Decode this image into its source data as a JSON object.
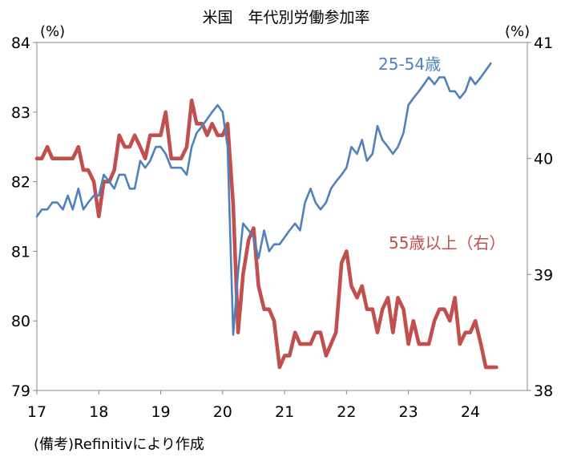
{
  "chart_data": {
    "type": "line",
    "title": "米国　年代別労働参加率",
    "y_unit_left": "(%)",
    "y_unit_right": "(%)",
    "source_note": "(備考)Refinitivにより作成",
    "x_ticks": [
      "17",
      "18",
      "19",
      "20",
      "21",
      "22",
      "23",
      "24"
    ],
    "x_tick_values": [
      2017,
      2018,
      2019,
      2020,
      2021,
      2022,
      2023,
      2024
    ],
    "xlim": [
      2017,
      2024.92
    ],
    "ylim_left": [
      79,
      84
    ],
    "ylim_right": [
      38,
      41
    ],
    "yticks_left": [
      "84",
      "83",
      "82",
      "81",
      "80",
      "79"
    ],
    "yticks_right": [
      "41",
      "40",
      "39",
      "38"
    ],
    "grid": false,
    "series": [
      {
        "name": "25-54歳",
        "axis": "left",
        "color": "#4f81bd",
        "x": [
          2017.0,
          2017.08,
          2017.17,
          2017.25,
          2017.33,
          2017.42,
          2017.5,
          2017.58,
          2017.67,
          2017.75,
          2017.83,
          2017.92,
          2018.0,
          2018.08,
          2018.17,
          2018.25,
          2018.33,
          2018.42,
          2018.5,
          2018.58,
          2018.67,
          2018.75,
          2018.83,
          2018.92,
          2019.0,
          2019.08,
          2019.17,
          2019.25,
          2019.33,
          2019.42,
          2019.5,
          2019.58,
          2019.67,
          2019.75,
          2019.83,
          2019.92,
          2020.0,
          2020.08,
          2020.17,
          2020.25,
          2020.33,
          2020.42,
          2020.5,
          2020.58,
          2020.67,
          2020.75,
          2020.83,
          2020.92,
          2021.0,
          2021.08,
          2021.17,
          2021.25,
          2021.33,
          2021.42,
          2021.5,
          2021.58,
          2021.67,
          2021.75,
          2021.83,
          2021.92,
          2022.0,
          2022.08,
          2022.17,
          2022.25,
          2022.33,
          2022.42,
          2022.5,
          2022.58,
          2022.67,
          2022.75,
          2022.83,
          2022.92,
          2023.0,
          2023.08,
          2023.17,
          2023.25,
          2023.33,
          2023.42,
          2023.5,
          2023.58,
          2023.67,
          2023.75,
          2023.83,
          2023.92,
          2024.0,
          2024.08,
          2024.17,
          2024.25,
          2024.33,
          2024.42
        ],
        "values": [
          81.5,
          81.6,
          81.6,
          81.7,
          81.7,
          81.6,
          81.8,
          81.6,
          81.9,
          81.6,
          81.7,
          81.8,
          81.8,
          82.1,
          82.0,
          81.9,
          82.1,
          82.1,
          81.9,
          81.9,
          82.3,
          82.2,
          82.3,
          82.5,
          82.5,
          82.4,
          82.2,
          82.2,
          82.2,
          82.1,
          82.5,
          82.7,
          82.8,
          82.9,
          83.0,
          83.1,
          83.0,
          82.5,
          79.8,
          80.7,
          81.4,
          81.3,
          81.2,
          80.9,
          81.3,
          81.0,
          81.1,
          81.1,
          81.2,
          81.3,
          81.4,
          81.3,
          81.7,
          81.9,
          81.7,
          81.6,
          81.7,
          81.9,
          82.0,
          82.1,
          82.2,
          82.5,
          82.4,
          82.6,
          82.3,
          82.4,
          82.8,
          82.6,
          82.5,
          82.4,
          82.5,
          82.7,
          83.1,
          83.2,
          83.3,
          83.4,
          83.5,
          83.4,
          83.5,
          83.5,
          83.3,
          83.3,
          83.2,
          83.3,
          83.5,
          83.4,
          83.5,
          83.6,
          83.7,
          null
        ]
      },
      {
        "name": "55歳以上（右）",
        "axis": "right",
        "color": "#c0504d",
        "x": [
          2017.0,
          2017.08,
          2017.17,
          2017.25,
          2017.33,
          2017.42,
          2017.5,
          2017.58,
          2017.67,
          2017.75,
          2017.83,
          2017.92,
          2018.0,
          2018.08,
          2018.17,
          2018.25,
          2018.33,
          2018.42,
          2018.5,
          2018.58,
          2018.67,
          2018.75,
          2018.83,
          2018.92,
          2019.0,
          2019.08,
          2019.17,
          2019.25,
          2019.33,
          2019.42,
          2019.5,
          2019.58,
          2019.67,
          2019.75,
          2019.83,
          2019.92,
          2020.0,
          2020.08,
          2020.17,
          2020.25,
          2020.33,
          2020.42,
          2020.5,
          2020.58,
          2020.67,
          2020.75,
          2020.83,
          2020.92,
          2021.0,
          2021.08,
          2021.17,
          2021.25,
          2021.33,
          2021.42,
          2021.5,
          2021.58,
          2021.67,
          2021.75,
          2021.83,
          2021.92,
          2022.0,
          2022.08,
          2022.17,
          2022.25,
          2022.33,
          2022.42,
          2022.5,
          2022.58,
          2022.67,
          2022.75,
          2022.83,
          2022.92,
          2023.0,
          2023.08,
          2023.17,
          2023.25,
          2023.33,
          2023.42,
          2023.5,
          2023.58,
          2023.67,
          2023.75,
          2023.83,
          2023.92,
          2024.0,
          2024.08,
          2024.17,
          2024.25,
          2024.33,
          2024.42
        ],
        "values": [
          40.0,
          40.0,
          40.1,
          40.0,
          40.0,
          40.0,
          40.0,
          40.0,
          40.1,
          39.9,
          39.9,
          39.8,
          39.5,
          39.8,
          39.8,
          39.9,
          40.2,
          40.1,
          40.1,
          40.2,
          40.1,
          40.0,
          40.2,
          40.2,
          40.2,
          40.4,
          40.0,
          40.0,
          40.0,
          40.1,
          40.5,
          40.3,
          40.3,
          40.2,
          40.3,
          40.2,
          40.2,
          40.3,
          39.6,
          38.5,
          39.0,
          39.3,
          39.4,
          38.9,
          38.7,
          38.7,
          38.6,
          38.2,
          38.3,
          38.3,
          38.5,
          38.4,
          38.4,
          38.4,
          38.5,
          38.5,
          38.3,
          38.4,
          38.5,
          39.1,
          39.2,
          38.9,
          38.8,
          38.9,
          38.7,
          38.7,
          38.5,
          38.7,
          38.8,
          38.5,
          38.8,
          38.7,
          38.4,
          38.6,
          38.4,
          38.4,
          38.4,
          38.6,
          38.7,
          38.7,
          38.6,
          38.8,
          38.4,
          38.5,
          38.5,
          38.6,
          38.4,
          38.2,
          38.2,
          38.2
        ]
      }
    ],
    "annotations": [
      {
        "text": "25-54歳",
        "color": "#4f81bd"
      },
      {
        "text": "55歳以上（右）",
        "color": "#c0504d"
      }
    ]
  }
}
